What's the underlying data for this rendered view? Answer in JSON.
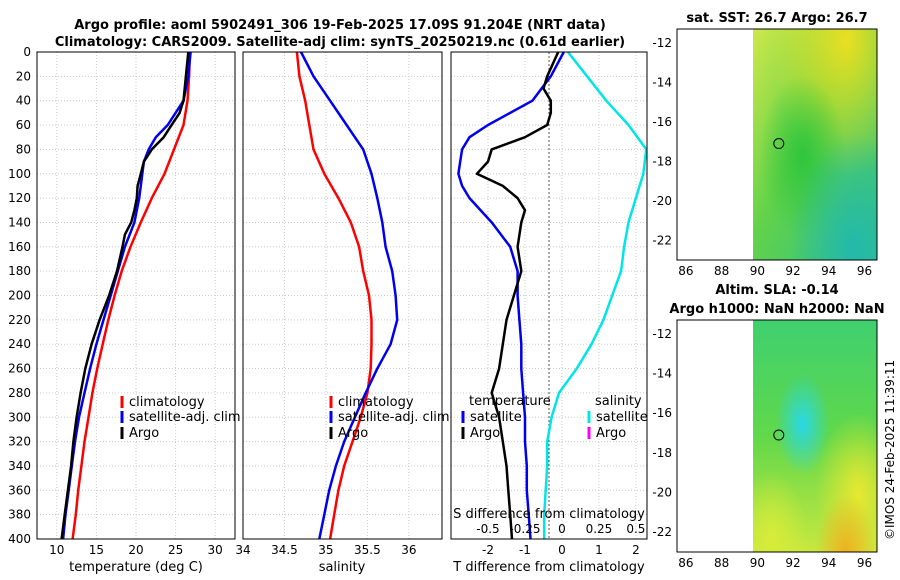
{
  "title_line1": "Argo profile: aoml 5902491_306 19-Feb-2025 17.09S 91.204E (NRT data)",
  "title_line2": "Climatology: CARS2009. Satellite-adj clim: synTS_20250219.nc (0.61d earlier)",
  "credit": "©IMOS 24-Feb-2025 11:39:11",
  "colors": {
    "climatology": "#ff0000",
    "satellite": "#0000ee",
    "argo": "#000000",
    "satellite_salinity": "#00e5e5",
    "argo_salinity": "#ff00ff",
    "grid": "#cccccc"
  },
  "chart_data": [
    {
      "type": "line",
      "id": "temperature",
      "xlabel": "temperature (deg C)",
      "ylabel": "depth",
      "xlim": [
        7.5,
        32.5
      ],
      "ylim": [
        400,
        0
      ],
      "xticks": [
        10,
        15,
        20,
        25,
        30
      ],
      "yticks": [
        0,
        20,
        40,
        60,
        80,
        100,
        120,
        140,
        160,
        180,
        200,
        220,
        240,
        260,
        280,
        300,
        320,
        340,
        360,
        380,
        400
      ],
      "legend": [
        "climatology",
        "satellite-adj. clim",
        "Argo"
      ],
      "series": [
        {
          "name": "climatology",
          "color": "#ff0000",
          "depth": [
            0,
            20,
            40,
            60,
            80,
            100,
            120,
            140,
            160,
            180,
            200,
            220,
            240,
            260,
            280,
            300,
            320,
            340,
            360,
            380,
            400
          ],
          "values": [
            26.8,
            26.7,
            26.5,
            26.0,
            24.8,
            23.6,
            22.0,
            20.6,
            19.3,
            18.2,
            17.3,
            16.5,
            15.8,
            15.1,
            14.5,
            14.0,
            13.5,
            13.1,
            12.7,
            12.4,
            12.0
          ]
        },
        {
          "name": "satellite-adj. clim",
          "color": "#0000ee",
          "depth": [
            0,
            20,
            40,
            60,
            70,
            80,
            90,
            100,
            110,
            120,
            140,
            160,
            180,
            200,
            220,
            240,
            260,
            280,
            300,
            320,
            340,
            360,
            380,
            400
          ],
          "values": [
            26.9,
            26.6,
            26.0,
            24.0,
            22.5,
            21.6,
            21.0,
            20.8,
            20.6,
            20.4,
            19.8,
            18.6,
            17.7,
            16.8,
            15.9,
            15.0,
            14.2,
            13.5,
            12.8,
            12.3,
            11.9,
            11.5,
            11.1,
            10.8
          ]
        },
        {
          "name": "Argo",
          "color": "#000000",
          "depth": [
            0,
            20,
            40,
            50,
            60,
            70,
            80,
            90,
            100,
            110,
            120,
            130,
            140,
            150,
            160,
            180,
            200,
            220,
            240,
            260,
            280,
            300,
            320,
            340,
            360,
            380,
            400
          ],
          "values": [
            26.6,
            26.3,
            26.0,
            25.5,
            24.5,
            23.5,
            22.0,
            21.0,
            20.6,
            20.2,
            20.1,
            19.8,
            19.4,
            18.6,
            18.3,
            17.6,
            16.6,
            15.4,
            14.4,
            13.6,
            13.0,
            12.5,
            12.1,
            11.8,
            11.4,
            11.0,
            10.6
          ]
        }
      ]
    },
    {
      "type": "line",
      "id": "salinity",
      "xlabel": "salinity",
      "xlim": [
        34.0,
        36.4
      ],
      "ylim": [
        400,
        0
      ],
      "xticks": [
        34,
        34.5,
        35,
        35.5,
        36
      ],
      "xticklabels": [
        "34",
        "34.5",
        "35",
        "35.5",
        "36"
      ],
      "legend": [
        "climatology",
        "satellite-adj. clim",
        "Argo"
      ],
      "series": [
        {
          "name": "climatology",
          "color": "#ff0000",
          "depth": [
            0,
            20,
            40,
            60,
            80,
            100,
            120,
            140,
            160,
            180,
            200,
            220,
            240,
            260,
            280,
            300,
            320,
            340,
            360,
            380,
            400
          ],
          "values": [
            34.65,
            34.68,
            34.75,
            34.8,
            34.85,
            34.98,
            35.15,
            35.3,
            35.4,
            35.45,
            35.52,
            35.55,
            35.55,
            35.54,
            35.5,
            35.42,
            35.32,
            35.22,
            35.15,
            35.1,
            35.05
          ]
        },
        {
          "name": "satellite-adj. clim",
          "color": "#0000ee",
          "depth": [
            0,
            20,
            40,
            60,
            80,
            100,
            120,
            140,
            160,
            180,
            200,
            220,
            240,
            260,
            280,
            300,
            320,
            340,
            360,
            380,
            400
          ],
          "values": [
            34.7,
            34.85,
            35.05,
            35.25,
            35.45,
            35.55,
            35.62,
            35.68,
            35.72,
            35.8,
            35.84,
            35.86,
            35.78,
            35.62,
            35.48,
            35.35,
            35.22,
            35.12,
            35.04,
            34.98,
            34.92
          ]
        }
      ]
    },
    {
      "type": "line",
      "id": "difference",
      "xlabel": "T difference from climatology",
      "xlabel_top": "S difference from climatology",
      "xlim": [
        -3.0,
        2.3
      ],
      "ylim": [
        400,
        0
      ],
      "xticks": [
        -2,
        -1,
        0,
        1,
        2
      ],
      "xticklabels": [
        "-2",
        "-1",
        "0",
        "1",
        "2"
      ],
      "xticks_salinity": [
        -0.5,
        -0.25,
        0,
        0.25,
        0.5
      ],
      "xticklabels_salinity": [
        "-0.5",
        "-0.25",
        "0",
        "0.25",
        "0.5"
      ],
      "legend": [
        "temperature",
        "satellite",
        "Argo",
        "salinity",
        "satellite",
        "Argo"
      ],
      "series": [
        {
          "name": "temperature satellite",
          "color": "#0000ee",
          "depth": [
            0,
            20,
            40,
            60,
            70,
            80,
            90,
            100,
            110,
            120,
            140,
            160,
            180,
            200,
            220,
            240,
            260,
            280,
            300,
            320,
            340,
            360,
            380,
            400
          ],
          "values": [
            0.05,
            -0.3,
            -0.8,
            -2.0,
            -2.5,
            -2.7,
            -2.75,
            -2.8,
            -2.7,
            -2.5,
            -1.9,
            -1.4,
            -1.2,
            -1.2,
            -1.15,
            -1.1,
            -1.1,
            -1.05,
            -1.0,
            -1.0,
            -0.95,
            -0.95,
            -0.9,
            -0.85
          ]
        },
        {
          "name": "temperature Argo",
          "color": "#000000",
          "depth": [
            0,
            20,
            30,
            40,
            50,
            60,
            70,
            80,
            90,
            100,
            110,
            120,
            130,
            140,
            160,
            180,
            200,
            220,
            240,
            260,
            280,
            300,
            320,
            340,
            360,
            380,
            400
          ],
          "values": [
            -0.1,
            -0.4,
            -0.5,
            -0.3,
            -0.3,
            -0.4,
            -1.0,
            -1.9,
            -2.0,
            -2.3,
            -1.6,
            -1.2,
            -1.0,
            -1.1,
            -1.2,
            -1.1,
            -1.3,
            -1.5,
            -1.6,
            -1.7,
            -1.9,
            -1.7,
            -1.6,
            -1.5,
            -1.45,
            -1.4,
            -1.35
          ]
        },
        {
          "name": "salinity satellite",
          "color": "#00e5e5",
          "depth": [
            0,
            20,
            40,
            60,
            80,
            100,
            120,
            140,
            160,
            180,
            200,
            220,
            240,
            260,
            280,
            300,
            320,
            340,
            360,
            380,
            400
          ],
          "values": [
            0.04,
            0.17,
            0.3,
            0.45,
            0.57,
            0.55,
            0.5,
            0.45,
            0.42,
            0.4,
            0.34,
            0.28,
            0.2,
            0.1,
            -0.02,
            -0.07,
            -0.1,
            -0.1,
            -0.11,
            -0.12,
            -0.12
          ]
        }
      ]
    },
    {
      "type": "heatmap",
      "id": "sst_map",
      "title": "sat. SST: 26.7 Argo: 26.7",
      "xlim": [
        85.5,
        96.7
      ],
      "ylim": [
        -23,
        -11.3
      ],
      "xticks": [
        86,
        88,
        90,
        92,
        94,
        96
      ],
      "yticks": [
        -12,
        -14,
        -16,
        -18,
        -20,
        -22
      ],
      "yticklabels": [
        "-12",
        "-14",
        "-16",
        "-18",
        "-20",
        "-22"
      ],
      "float_position": [
        91.2,
        -17.1
      ]
    },
    {
      "type": "heatmap",
      "id": "sla_map",
      "title_line1": "Altim. SLA: -0.14",
      "title_line2": "Argo h1000: NaN h2000: NaN",
      "xlim": [
        85.5,
        96.7
      ],
      "ylim": [
        -23,
        -11.3
      ],
      "xticks": [
        86,
        88,
        90,
        92,
        94,
        96
      ],
      "yticks": [
        -12,
        -14,
        -16,
        -18,
        -20,
        -22
      ],
      "yticklabels": [
        "-12",
        "-14",
        "-16",
        "-18",
        "-20",
        "-22"
      ],
      "float_position": [
        91.2,
        -17.1
      ]
    }
  ]
}
